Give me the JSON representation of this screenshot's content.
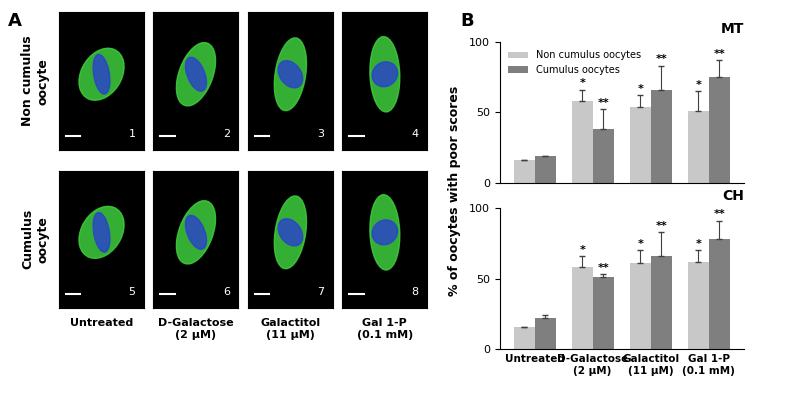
{
  "panel_a": {
    "label": "A",
    "row_labels": [
      "Non cumulus\noocyte",
      "Cumulus\noocyte"
    ],
    "column_labels": [
      "Untreated",
      "D-Galactose\n(2 µM)",
      "Galactitol\n(11 µM)",
      "Gal 1-P\n(0.1 mM)"
    ],
    "image_numbers": [
      [
        1,
        2,
        3,
        4
      ],
      [
        5,
        6,
        7,
        8
      ]
    ]
  },
  "panel_b": {
    "label": "B",
    "ylabel": "% of oocytes with poor scores"
  },
  "chart_data": [
    {
      "type": "bar",
      "title": "MT",
      "categories": [
        "Untreated",
        "D-Galactose\n(2 µM)",
        "Galactitol\n(11 µM)",
        "Gal 1-P\n(0.1 mM)"
      ],
      "series": [
        {
          "name": "Non cumulus oocytes",
          "color": "#c8c8c8",
          "values": [
            16,
            58,
            54,
            51
          ],
          "errors": [
            0,
            8,
            8,
            14
          ],
          "marks": [
            null,
            "*",
            "*",
            "*"
          ]
        },
        {
          "name": "Cumulus oocytes",
          "color": "#7f7f7f",
          "values": [
            19,
            38,
            66,
            75
          ],
          "errors": [
            0,
            14,
            17,
            12
          ],
          "marks": [
            null,
            "**",
            "**",
            "**"
          ]
        }
      ],
      "ylim": [
        0,
        100
      ],
      "yticks": [
        0,
        50,
        100
      ],
      "legend": "upper left",
      "tick_labels": "y"
    },
    {
      "type": "bar",
      "title": "CH",
      "categories": [
        "Untreated",
        "D-Galactose\n(2 µM)",
        "Galactitol\n(11 µM)",
        "Gal 1-P\n(0.1 mM)"
      ],
      "series": [
        {
          "name": "Non cumulus oocytes",
          "color": "#c8c8c8",
          "values": [
            16,
            58,
            61,
            62
          ],
          "errors": [
            0,
            8,
            9,
            8
          ],
          "marks": [
            null,
            "*",
            "*",
            "*"
          ]
        },
        {
          "name": "Cumulus oocytes",
          "color": "#7f7f7f",
          "values": [
            22,
            51,
            66,
            78
          ],
          "errors": [
            2,
            2,
            17,
            13
          ],
          "marks": [
            null,
            "**",
            "**",
            "**"
          ]
        }
      ],
      "ylim": [
        0,
        100
      ],
      "yticks": [
        0,
        50,
        100
      ]
    }
  ]
}
